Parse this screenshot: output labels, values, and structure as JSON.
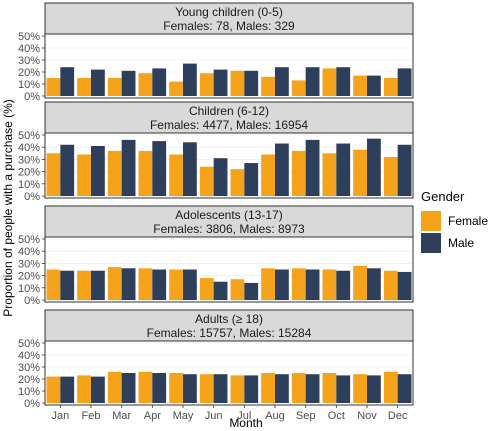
{
  "chart_data": {
    "type": "bar",
    "xlabel": "Month",
    "ylabel": "Proportion of people with a purchase (%)",
    "legend_title": "Gender",
    "legend_position": "right",
    "categories": [
      "Jan",
      "Feb",
      "Mar",
      "Apr",
      "May",
      "Jun",
      "Jul",
      "Aug",
      "Sep",
      "Oct",
      "Nov",
      "Dec"
    ],
    "colors": {
      "Female": "#f5a31a",
      "Male": "#2e3f5c"
    },
    "y_ticks": [
      "0%",
      "10%",
      "20%",
      "30%",
      "40%",
      "50%"
    ],
    "panels": [
      {
        "title": "Young children (0-5)",
        "subtitle": "Females: 78, Males: 329",
        "ylim": [
          0,
          50
        ],
        "series": [
          {
            "name": "Female",
            "values": [
              15,
              15,
              15,
              19,
              12,
              19,
              21,
              16,
              13,
              23,
              17,
              15
            ]
          },
          {
            "name": "Male",
            "values": [
              24,
              22,
              21,
              23,
              27,
              22,
              21,
              24,
              24,
              24,
              17,
              23
            ]
          }
        ]
      },
      {
        "title": "Children (6-12)",
        "subtitle": "Females: 4477, Males: 16954",
        "ylim": [
          0,
          50
        ],
        "series": [
          {
            "name": "Female",
            "values": [
              35,
              34,
              37,
              37,
              34,
              24,
              22,
              34,
              37,
              35,
              38,
              32
            ]
          },
          {
            "name": "Male",
            "values": [
              42,
              41,
              46,
              45,
              44,
              31,
              27,
              43,
              46,
              43,
              47,
              42
            ]
          }
        ]
      },
      {
        "title": "Adolescents (13-17)",
        "subtitle": "Females: 3806, Males: 8973",
        "ylim": [
          0,
          50
        ],
        "series": [
          {
            "name": "Female",
            "values": [
              25,
              24,
              27,
              26,
              25,
              18,
              17,
              26,
              26,
              25,
              28,
              24
            ]
          },
          {
            "name": "Male",
            "values": [
              24,
              24,
              26,
              25,
              25,
              15,
              14,
              25,
              25,
              24,
              26,
              23
            ]
          }
        ]
      },
      {
        "title": "Adults (≥ 18)",
        "subtitle": "Females: 15757, Males: 15284",
        "ylim": [
          0,
          50
        ],
        "series": [
          {
            "name": "Female",
            "values": [
              22,
              23,
              26,
              26,
              25,
              24,
              23,
              25,
              25,
              25,
              24,
              26
            ]
          },
          {
            "name": "Male",
            "values": [
              22,
              22,
              25,
              25,
              24,
              24,
              23,
              24,
              24,
              23,
              23,
              24
            ]
          }
        ]
      }
    ]
  }
}
